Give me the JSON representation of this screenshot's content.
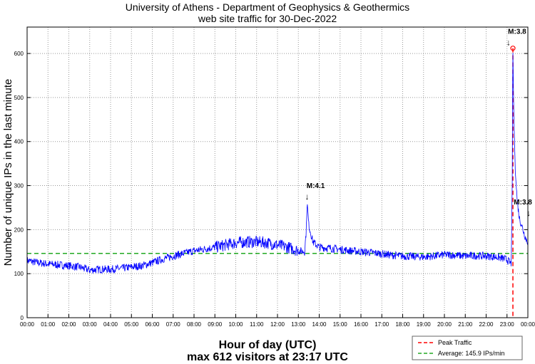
{
  "chart_data": {
    "type": "line",
    "title": "University of Athens - Department of Geophysics & Geothermics",
    "subtitle": "web site traffic for 30-Dec-2022",
    "xlabel": "Hour of day (UTC)",
    "xlabel2": "max 612 visitors at 23:17 UTC",
    "ylabel": "Number of unique IPs in the last minute",
    "xlim": [
      0,
      24
    ],
    "ylim": [
      0,
      660
    ],
    "grid": true,
    "x_tick_labels": [
      "00:00",
      "01:00",
      "02:00",
      "03:00",
      "04:00",
      "05:00",
      "06:00",
      "07:00",
      "08:00",
      "09:00",
      "10:00",
      "11:00",
      "12:00",
      "13:00",
      "14:00",
      "15:00",
      "16:00",
      "17:00",
      "18:00",
      "19:00",
      "20:00",
      "21:00",
      "22:00",
      "23:00",
      "00:00"
    ],
    "y_ticks": [
      0,
      100,
      200,
      300,
      400,
      500,
      600
    ],
    "series": [
      {
        "name": "Traffic",
        "color": "#0000ff",
        "x": [
          0,
          0.5,
          1,
          1.5,
          2,
          2.5,
          3,
          3.5,
          4,
          4.5,
          5,
          5.5,
          6,
          6.5,
          7,
          7.5,
          8,
          8.5,
          9,
          9.5,
          10,
          10.5,
          11,
          11.5,
          12,
          12.5,
          13,
          13.3,
          13.38,
          13.42,
          13.5,
          13.7,
          14,
          14.5,
          15,
          15.5,
          16,
          16.5,
          17,
          17.5,
          18,
          18.5,
          19,
          19.5,
          20,
          20.5,
          21,
          21.5,
          22,
          22.5,
          23,
          23.2,
          23.25,
          23.28,
          23.33,
          23.4,
          23.5,
          23.6,
          23.7,
          23.8,
          23.9,
          24
        ],
        "y": [
          130,
          125,
          122,
          120,
          118,
          115,
          108,
          110,
          110,
          112,
          115,
          118,
          125,
          133,
          140,
          146,
          152,
          156,
          160,
          165,
          170,
          172,
          172,
          170,
          165,
          160,
          152,
          150,
          200,
          262,
          210,
          172,
          160,
          158,
          155,
          152,
          150,
          148,
          145,
          142,
          140,
          139,
          138,
          140,
          143,
          142,
          140,
          141,
          140,
          138,
          132,
          122,
          300,
          612,
          450,
          330,
          260,
          225,
          210,
          195,
          180,
          172
        ]
      }
    ],
    "reference_lines": [
      {
        "name": "Peak Traffic",
        "orientation": "vertical",
        "x": 23.283,
        "color": "#ff0000"
      },
      {
        "name": "Average: 145.9 IPs/min",
        "orientation": "horizontal",
        "y": 145.9,
        "color": "#22aa22"
      }
    ],
    "peak_marker": {
      "x": 23.283,
      "y": 612
    },
    "annotations": [
      {
        "text": "M:4.1",
        "x": 13.42,
        "y": 262
      },
      {
        "text": "M:3.8",
        "x": 23.28,
        "y": 612
      },
      {
        "text": "M:3.8",
        "x": 23.9,
        "y": 225
      }
    ],
    "legend": {
      "placement": "bottom-right",
      "entries": [
        "Peak Traffic",
        "Average: 145.9 IPs/min"
      ]
    }
  }
}
